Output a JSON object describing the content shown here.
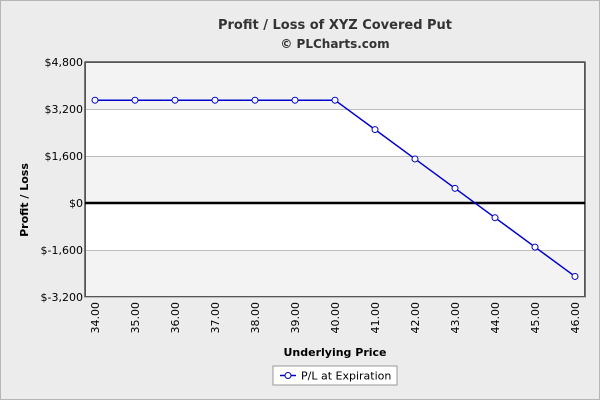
{
  "chart_data": {
    "type": "line",
    "title": "Profit / Loss of XYZ Covered Put",
    "subtitle": "© PLCharts.com",
    "xlabel": "Underlying Price",
    "ylabel": "Profit / Loss",
    "x": [
      34.0,
      35.0,
      36.0,
      37.0,
      38.0,
      39.0,
      40.0,
      41.0,
      42.0,
      43.0,
      44.0,
      45.0,
      46.0
    ],
    "x_tick_labels": [
      "34.00",
      "35.00",
      "36.00",
      "37.00",
      "38.00",
      "39.00",
      "40.00",
      "41.00",
      "42.00",
      "43.00",
      "44.00",
      "45.00",
      "46.00"
    ],
    "ylim": [
      -3200,
      4800
    ],
    "y_ticks": [
      -3200,
      -1600,
      0,
      1600,
      3200,
      4800
    ],
    "y_tick_labels": [
      "$-3,200",
      "$-1,600",
      "$0",
      "$1,600",
      "$3,200",
      "$4,800"
    ],
    "series": [
      {
        "name": "P/L at Expiration",
        "color": "#0000cc",
        "values": [
          3500,
          3500,
          3500,
          3500,
          3500,
          3500,
          3500,
          2500,
          1500,
          500,
          -500,
          -1500,
          -2500
        ]
      }
    ],
    "zero_line": true,
    "grid": true,
    "legend_position": "bottom-center"
  }
}
